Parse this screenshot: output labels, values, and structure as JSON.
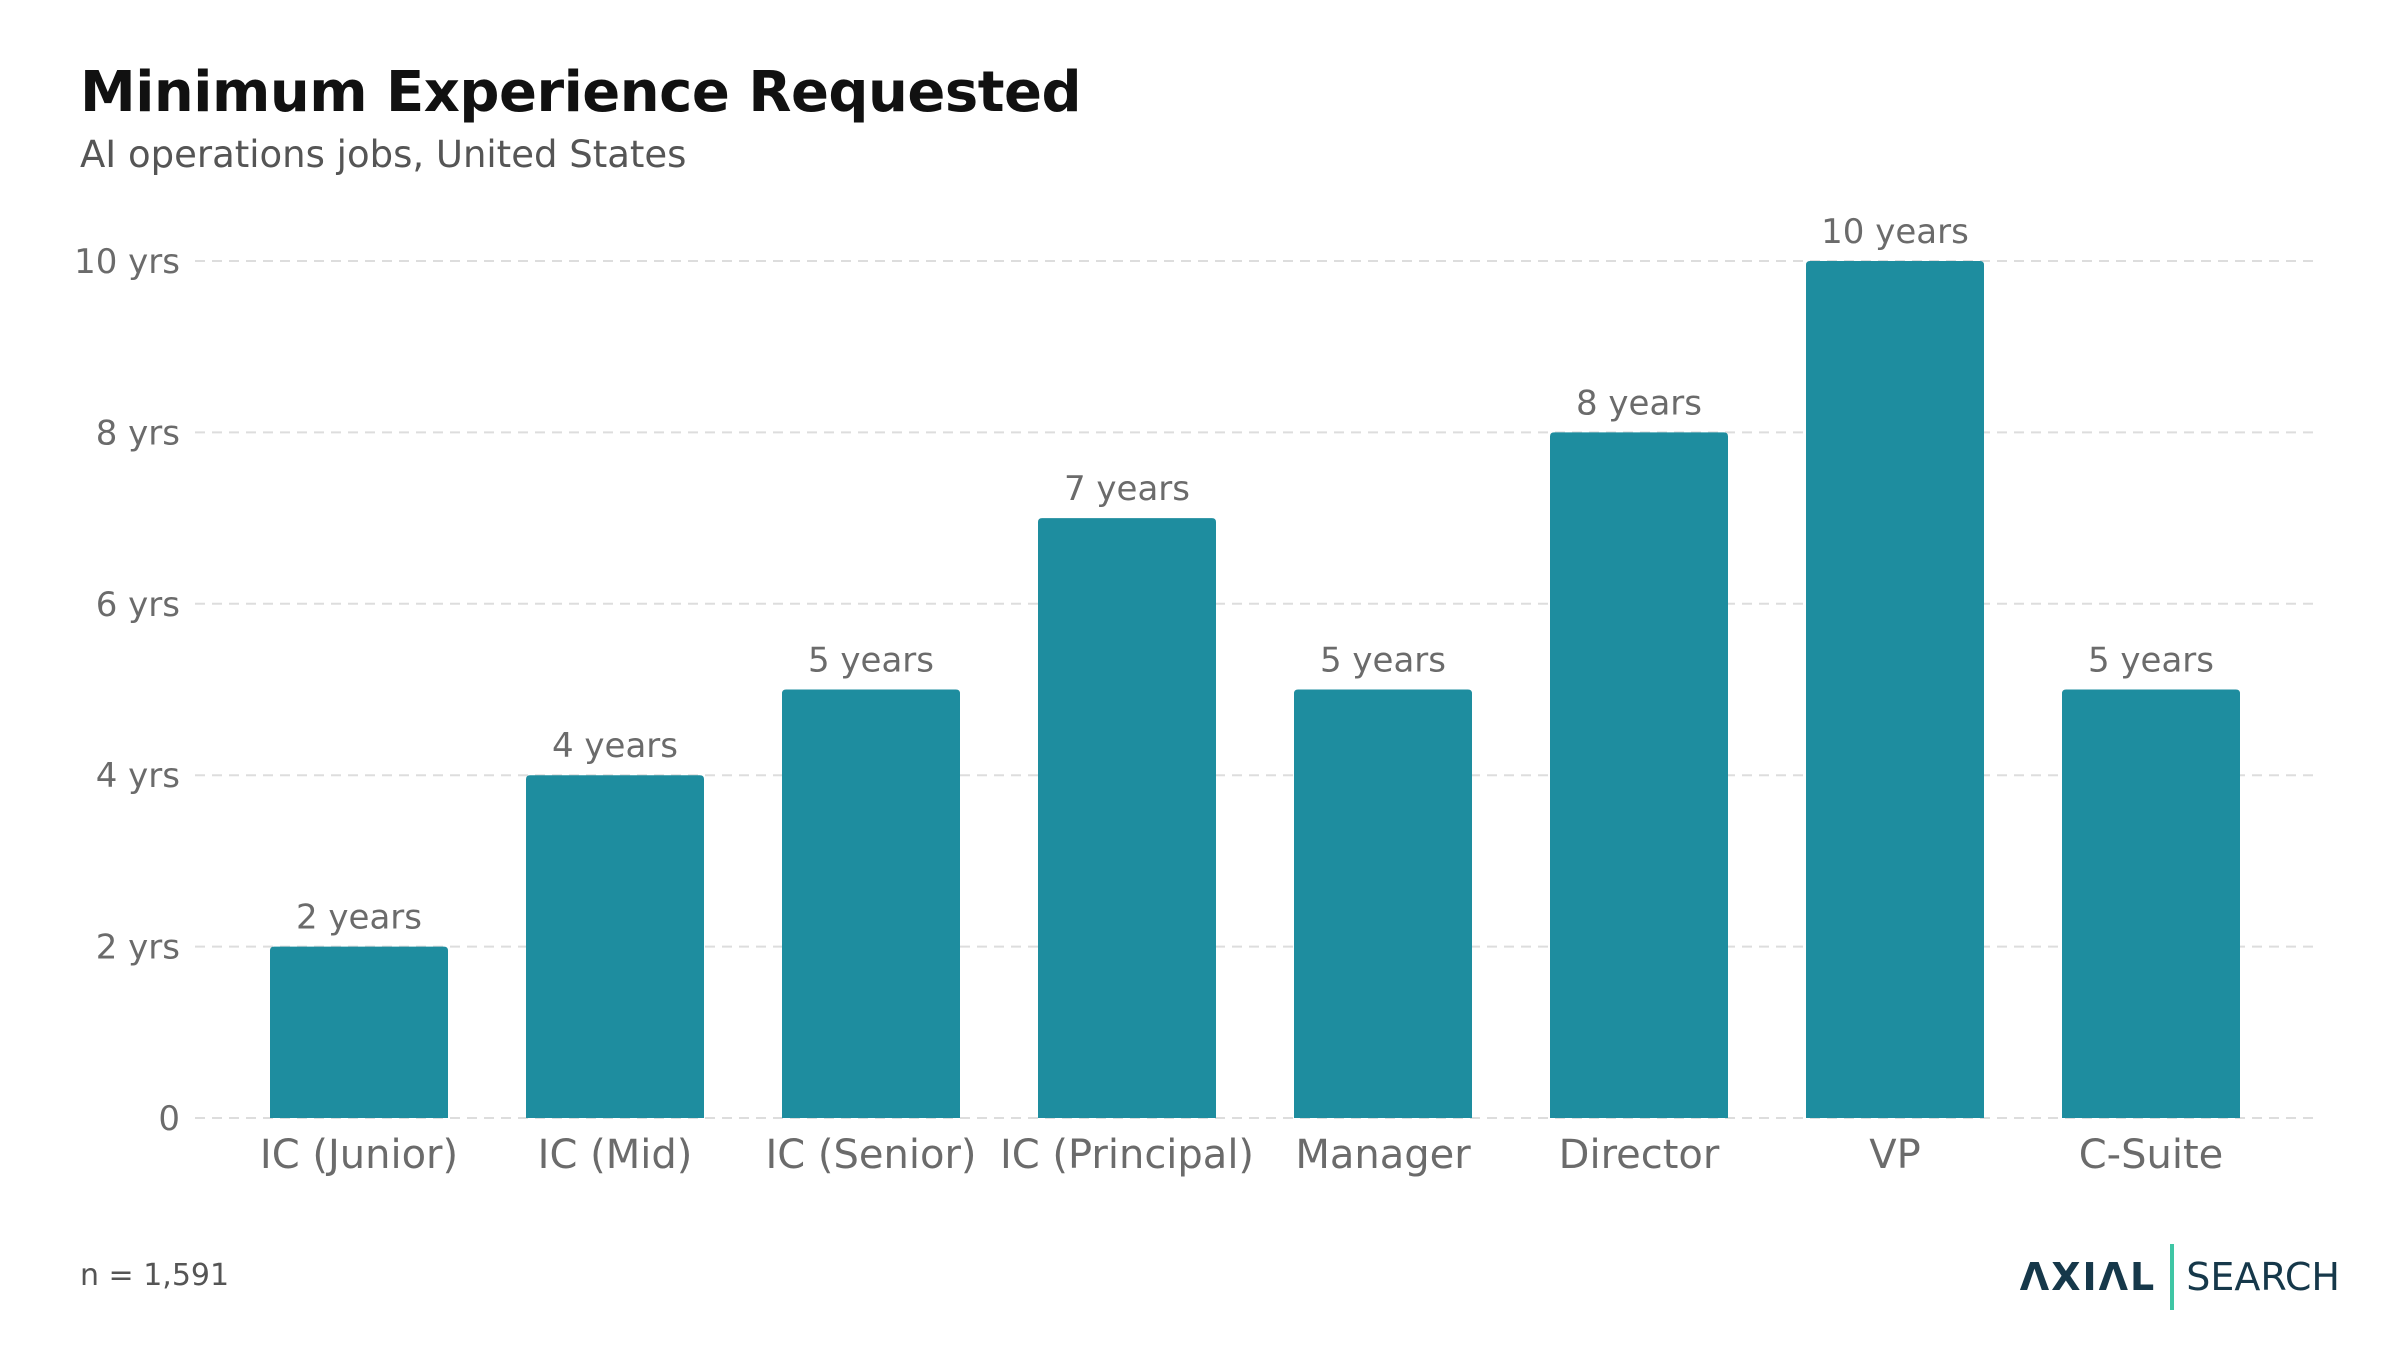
{
  "header": {
    "title": "Minimum Experience Requested",
    "subtitle": "AI operations jobs, United States"
  },
  "chart_data": {
    "type": "bar",
    "title": "Minimum Experience Requested",
    "subtitle": "AI operations jobs, United States",
    "categories": [
      "IC (Junior)",
      "IC (Mid)",
      "IC (Senior)",
      "IC (Principal)",
      "Manager",
      "Director",
      "VP",
      "C-Suite"
    ],
    "values": [
      2,
      4,
      5,
      7,
      5,
      8,
      10,
      5
    ],
    "data_labels": [
      "2 years",
      "4 years",
      "5 years",
      "7 years",
      "5 years",
      "8 years",
      "10 years",
      "5 years"
    ],
    "y_ticks": [
      0,
      2,
      4,
      6,
      8,
      10
    ],
    "y_tick_labels": [
      "0",
      "2 yrs",
      "4 yrs",
      "6 yrs",
      "8 yrs",
      "10 yrs"
    ],
    "xlabel": "",
    "ylabel": "",
    "ylim": [
      0,
      10
    ],
    "grid": true,
    "legend": "none",
    "bar_color": "#1e8d9f"
  },
  "footer": {
    "note": "n = 1,591",
    "logo_mark": "ΛXIΛL",
    "logo_word": "SEARCH"
  },
  "colors": {
    "bar": "#1e8d9f",
    "grid": "#dddddd",
    "tick_text": "#6b6b6b",
    "label_text": "#6b6b6b",
    "logo_text": "#16384a",
    "logo_accent": "#3fc6a5"
  }
}
